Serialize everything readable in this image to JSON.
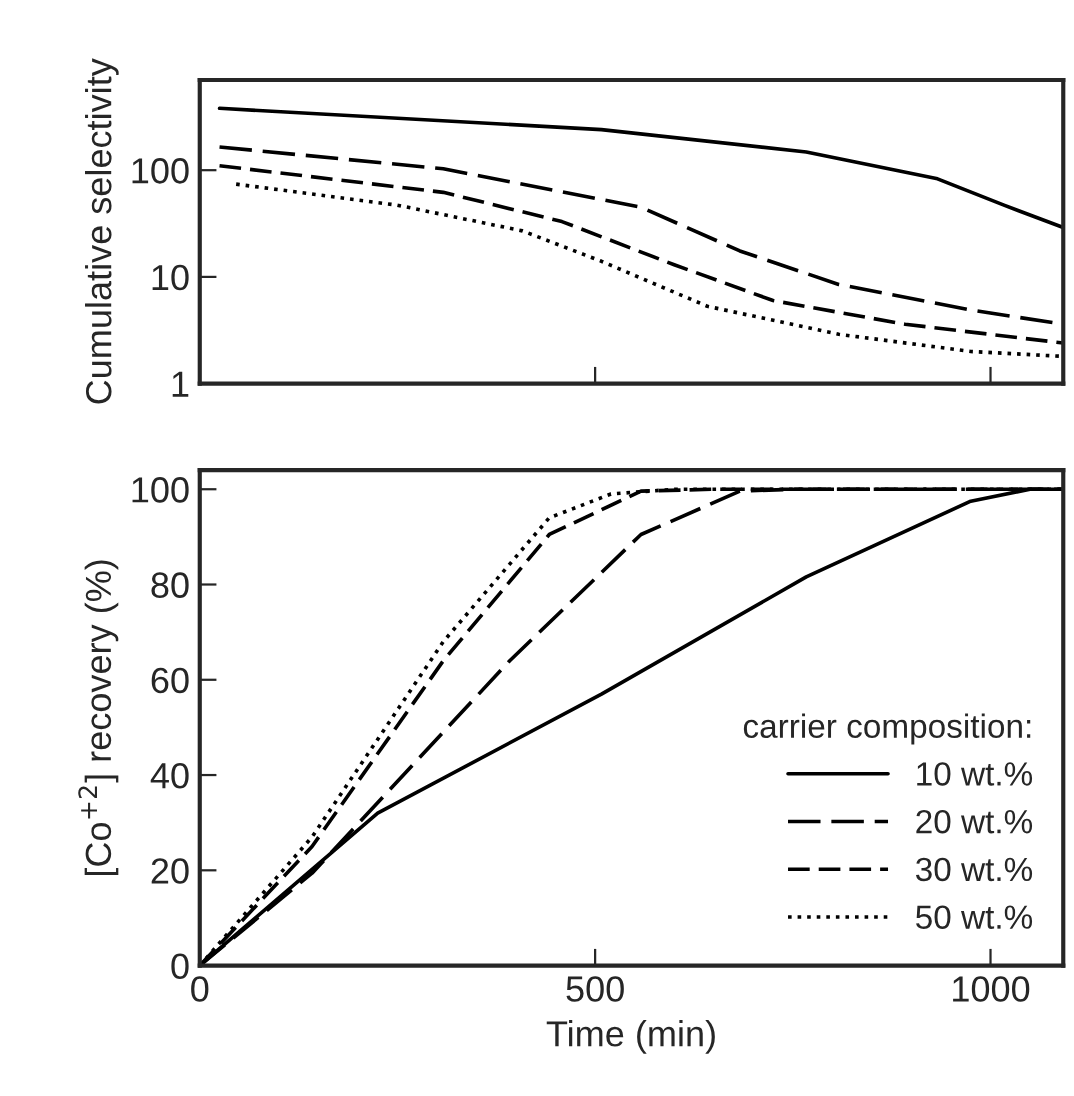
{
  "chart_data": [
    {
      "type": "line",
      "ylabel": "Cumulative selectivity",
      "log": "y",
      "xlim": [
        0,
        1092
      ],
      "ylim": [
        1,
        700
      ],
      "yticks": [
        1,
        10,
        100
      ],
      "xticks": [
        {
          "value": 0,
          "label": null
        },
        {
          "value": 500,
          "label": null
        },
        {
          "value": 1000,
          "label": null
        }
      ],
      "tick_labels": "y",
      "grid": false,
      "legend": false,
      "series": [
        {
          "color": "#000000",
          "line_style": "solid",
          "x": [
            25,
            508,
            767,
            933,
            1017,
            1092
          ],
          "values": [
            380,
            240,
            148,
            83,
            47,
            29
          ]
        },
        {
          "color": "#000000",
          "line_style": "dashed",
          "x": [
            25,
            308,
            558,
            683,
            808,
            975,
            1092
          ],
          "values": [
            165,
            103,
            45,
            17.5,
            8.5,
            4.9,
            3.6
          ]
        },
        {
          "color": "#000000",
          "line_style": "dashed",
          "x": [
            25,
            308,
            458,
            600,
            725,
            892,
            1092
          ],
          "values": [
            110,
            62,
            33,
            13,
            6,
            3.6,
            2.4
          ]
        },
        {
          "color": "#000000",
          "line_style": "dotted",
          "x": [
            46,
            250,
            408,
            508,
            642,
            808,
            975,
            1092
          ],
          "values": [
            74,
            47,
            27,
            14,
            5.3,
            2.9,
            2.0,
            1.8
          ]
        }
      ]
    },
    {
      "type": "line",
      "xlabel": "Time (min)",
      "ylabel": "[Co$^{+2}$] recovery (%)",
      "xlim": [
        0,
        1092
      ],
      "ylim": [
        0,
        104
      ],
      "xticks": [
        0,
        500,
        1000
      ],
      "yticks": [
        0,
        20,
        40,
        60,
        80,
        100
      ],
      "grid": false,
      "legend": "bottom right",
      "legend_title": "carrier composition:",
      "series": [
        {
          "name": "10 wt.%",
          "color": "#000000",
          "line_style": "solid",
          "x": [
            0,
            225,
            508,
            767,
            975,
            1050,
            1092
          ],
          "values": [
            0,
            32,
            57,
            81.6,
            97.5,
            100,
            100
          ]
        },
        {
          "name": "20 wt.%",
          "color": "#000000",
          "line_style": "dashed",
          "x": [
            0,
            142,
            392,
            558,
            683,
            750,
            1092
          ],
          "values": [
            0,
            19.4,
            64,
            90.5,
            99.6,
            100,
            100
          ]
        },
        {
          "name": "30 wt.%",
          "color": "#000000",
          "line_style": "dashed",
          "x": [
            0,
            142,
            308,
            442,
            558,
            650,
            1092
          ],
          "values": [
            0,
            25,
            64,
            90.5,
            99.6,
            100,
            100
          ]
        },
        {
          "name": "50 wt.%",
          "color": "#000000",
          "line_style": "dotted",
          "x": [
            0,
            142,
            308,
            442,
            520,
            600,
            1092
          ],
          "values": [
            0,
            27,
            68,
            94,
            99,
            100,
            100
          ]
        }
      ]
    }
  ]
}
